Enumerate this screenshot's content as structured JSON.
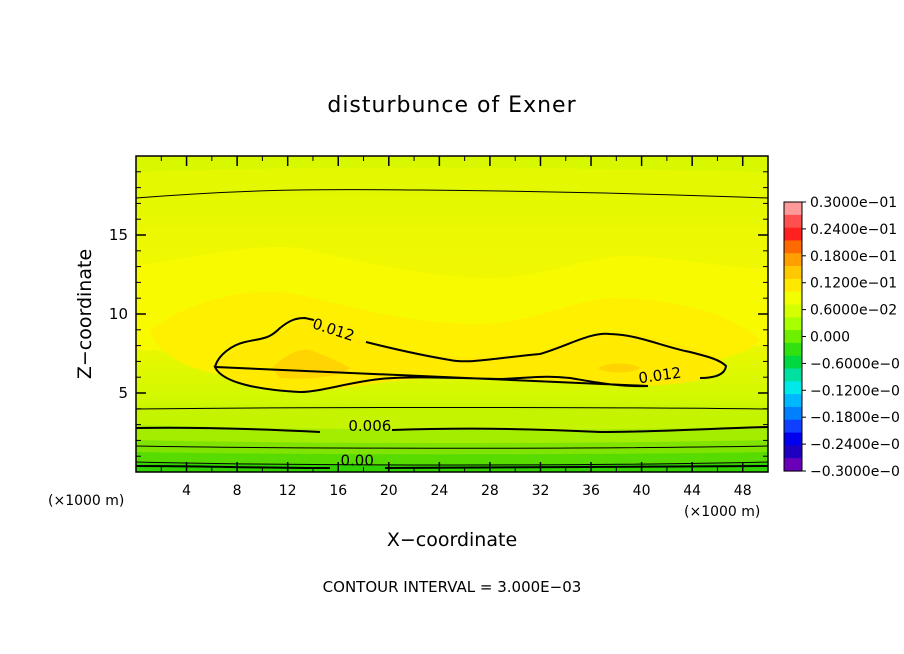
{
  "chart_data": {
    "type": "contour",
    "title": "disturbunce of Exner",
    "xlabel": "X−coordinate",
    "ylabel": "Z−coordinate",
    "x_unit_left": "(×1000 m)",
    "x_unit_right": "(×1000 m)",
    "xlim": [
      0,
      50
    ],
    "ylim": [
      0,
      20
    ],
    "x_ticks": [
      {
        "value": 4,
        "label": "4"
      },
      {
        "value": 8,
        "label": "8"
      },
      {
        "value": 12,
        "label": "12"
      },
      {
        "value": 16,
        "label": "16"
      },
      {
        "value": 20,
        "label": "20"
      },
      {
        "value": 24,
        "label": "24"
      },
      {
        "value": 28,
        "label": "28"
      },
      {
        "value": 32,
        "label": "32"
      },
      {
        "value": 36,
        "label": "36"
      },
      {
        "value": 40,
        "label": "40"
      },
      {
        "value": 44,
        "label": "44"
      },
      {
        "value": 48,
        "label": "48"
      }
    ],
    "y_ticks": [
      {
        "value": 5,
        "label": "5"
      },
      {
        "value": 10,
        "label": "10"
      },
      {
        "value": 15,
        "label": "15"
      }
    ],
    "contour_interval_text": "CONTOUR INTERVAL = 3.000E−03",
    "contour_labels": [
      {
        "text": "0.012",
        "x": 15.5,
        "z": 8.7,
        "angle": 18
      },
      {
        "text": "0.012",
        "x": 41.5,
        "z": 5.8,
        "angle": -8
      },
      {
        "text": "0.006",
        "x": 18.5,
        "z": 2.6,
        "angle": 0
      },
      {
        "text": "0.00",
        "x": 17.5,
        "z": 0.4,
        "angle": 0
      }
    ],
    "colorbar": {
      "labels": [
        "0.3000e−01",
        "0.2400e−01",
        "0.1800e−01",
        "0.1200e−01",
        "0.6000e−02",
        "0.000",
        "−0.6000e−0",
        "−0.1200e−0",
        "−0.1800e−0",
        "−0.2400e−0",
        "−0.3000e−0"
      ],
      "colors": [
        "#ff9a9a",
        "#ff5050",
        "#ff2020",
        "#ff6a00",
        "#ffa000",
        "#ffc800",
        "#ffe800",
        "#f2ff00",
        "#d4ff00",
        "#a8ff00",
        "#6cf000",
        "#30e010",
        "#00d840",
        "#00e0a0",
        "#00e8e8",
        "#00b8ff",
        "#0080ff",
        "#1040ff",
        "#0000ee",
        "#2000c0",
        "#6a00b8"
      ]
    },
    "field_bands": [
      {
        "level": "0.0165",
        "color": "#ffd200"
      },
      {
        "level": "0.015",
        "color": "#ffe200"
      },
      {
        "level": "0.0135",
        "color": "#fff000"
      },
      {
        "level": "0.012",
        "color": "#f8f800"
      },
      {
        "level": "0.0105",
        "color": "#eef800"
      },
      {
        "level": "0.009",
        "color": "#e0f800"
      },
      {
        "level": "0.0075",
        "color": "#d0f800"
      },
      {
        "level": "0.006",
        "color": "#b8f000"
      },
      {
        "level": "0.0045",
        "color": "#9ae800"
      },
      {
        "level": "0.003",
        "color": "#70e000"
      },
      {
        "level": "0.0015",
        "color": "#3cd800"
      }
    ]
  }
}
